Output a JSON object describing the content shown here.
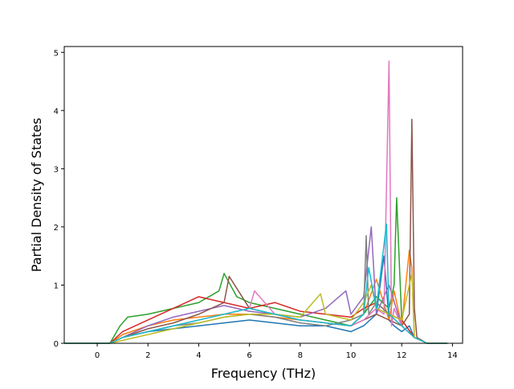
{
  "chart_data": {
    "type": "line",
    "title": "",
    "xlabel": "Frequency (THz)",
    "ylabel": "Partial Density of States",
    "xlim": [
      -1.3,
      14.4
    ],
    "ylim": [
      0,
      5.1
    ],
    "xticks": [
      0,
      2,
      4,
      6,
      8,
      10,
      12,
      14
    ],
    "yticks": [
      0,
      1,
      2,
      3,
      4,
      5
    ],
    "grid": false,
    "legend": "none",
    "colors": [
      "#1f77b4",
      "#ff7f0e",
      "#2ca02c",
      "#d62728",
      "#9467bd",
      "#8c564b",
      "#e377c2",
      "#7f7f7f",
      "#bcbd22",
      "#17becf"
    ],
    "series": [
      {
        "x": [
          -1.3,
          0.5,
          1,
          2,
          3,
          4,
          5,
          6,
          7,
          8,
          9,
          10,
          10.5,
          11,
          11.3,
          11.5,
          11.7,
          12,
          12.3,
          12.5,
          13,
          13.8
        ],
        "y": [
          0,
          0,
          0.1,
          0.2,
          0.25,
          0.3,
          0.35,
          0.4,
          0.35,
          0.3,
          0.3,
          0.2,
          0.3,
          0.5,
          1.5,
          0.4,
          0.3,
          0.2,
          0.3,
          0.1,
          0,
          0
        ]
      },
      {
        "x": [
          -1.3,
          0.5,
          1,
          2,
          3,
          4,
          5,
          6,
          7,
          8,
          9,
          10,
          10.5,
          11,
          11.5,
          11.7,
          12,
          12.3,
          12.4,
          12.5,
          13,
          13.8
        ],
        "y": [
          0,
          0,
          0.15,
          0.3,
          0.4,
          0.45,
          0.5,
          0.5,
          0.45,
          0.4,
          0.35,
          0.3,
          0.5,
          1.1,
          0.4,
          0.9,
          0.3,
          1.6,
          1.3,
          0.1,
          0,
          0
        ]
      },
      {
        "x": [
          -1.3,
          0.5,
          0.9,
          1.2,
          2,
          3,
          4,
          4.8,
          5,
          5.5,
          6,
          7,
          8,
          9,
          10,
          10.5,
          11,
          11.5,
          11.7,
          11.8,
          12,
          12.5,
          13,
          13.8
        ],
        "y": [
          0,
          0,
          0.3,
          0.45,
          0.5,
          0.6,
          0.7,
          0.9,
          1.2,
          0.8,
          0.7,
          0.6,
          0.5,
          0.4,
          0.3,
          0.5,
          0.8,
          0.6,
          1.0,
          2.5,
          0.4,
          0.1,
          0,
          0
        ]
      },
      {
        "x": [
          -1.3,
          0.5,
          1,
          2,
          3,
          4,
          5,
          6,
          7,
          8,
          9,
          10,
          10.5,
          11,
          11.5,
          12,
          12.5,
          13,
          13.8
        ],
        "y": [
          0,
          0,
          0.2,
          0.4,
          0.6,
          0.8,
          0.7,
          0.6,
          0.7,
          0.55,
          0.5,
          0.45,
          0.6,
          0.7,
          0.5,
          0.4,
          0.1,
          0,
          0
        ]
      },
      {
        "x": [
          -1.3,
          0.5,
          1,
          2,
          3,
          4,
          5,
          6,
          7,
          8,
          9,
          9.8,
          10,
          10.5,
          10.8,
          11,
          11.5,
          12,
          12.5,
          13,
          13.8
        ],
        "y": [
          0,
          0,
          0.1,
          0.3,
          0.45,
          0.55,
          0.65,
          0.55,
          0.5,
          0.45,
          0.6,
          0.9,
          0.5,
          0.8,
          2.0,
          0.5,
          1.0,
          0.3,
          0.1,
          0,
          0
        ]
      },
      {
        "x": [
          -1.3,
          0.5,
          1,
          2,
          3,
          4,
          5,
          5.2,
          6,
          7,
          8,
          9,
          10,
          10.5,
          11,
          11.5,
          12,
          12.3,
          12.4,
          12.5,
          12.6,
          13,
          13.8
        ],
        "y": [
          0,
          0,
          0.1,
          0.25,
          0.35,
          0.5,
          0.7,
          1.15,
          0.6,
          0.5,
          0.4,
          0.35,
          0.3,
          0.4,
          0.5,
          0.4,
          0.3,
          0.5,
          3.85,
          0.6,
          0.1,
          0,
          0
        ]
      },
      {
        "x": [
          -1.3,
          0.5,
          1,
          2,
          3,
          4,
          5,
          6,
          6.2,
          7,
          8,
          9,
          10,
          10.5,
          11,
          11.3,
          11.5,
          11.6,
          11.7,
          12,
          12.5,
          13,
          13.8
        ],
        "y": [
          0,
          0,
          0.1,
          0.2,
          0.3,
          0.4,
          0.5,
          0.6,
          0.9,
          0.5,
          0.4,
          0.35,
          0.3,
          0.4,
          0.6,
          0.5,
          4.85,
          0.3,
          0.6,
          0.3,
          0.1,
          0,
          0
        ]
      },
      {
        "x": [
          -1.3,
          0.5,
          1,
          2,
          3,
          4,
          5,
          6,
          7,
          8,
          9,
          10,
          10.5,
          10.6,
          10.7,
          11,
          11.5,
          12,
          12.5,
          13,
          13.8
        ],
        "y": [
          0,
          0,
          0.1,
          0.2,
          0.3,
          0.35,
          0.45,
          0.5,
          0.45,
          0.35,
          0.3,
          0.4,
          0.5,
          1.85,
          0.5,
          0.7,
          0.5,
          0.3,
          0.1,
          0,
          0
        ]
      },
      {
        "x": [
          -1.3,
          0.5,
          1,
          2,
          3,
          4,
          5,
          6,
          7,
          8,
          8.8,
          9,
          10,
          10.5,
          10.8,
          11,
          11.5,
          12,
          12.4,
          12.5,
          13,
          13.8
        ],
        "y": [
          0,
          0,
          0.05,
          0.15,
          0.25,
          0.35,
          0.45,
          0.5,
          0.5,
          0.45,
          0.85,
          0.5,
          0.4,
          0.7,
          1.0,
          0.6,
          0.5,
          0.4,
          1.2,
          0.1,
          0,
          0
        ]
      },
      {
        "x": [
          -1.3,
          0.5,
          1,
          2,
          3,
          4,
          5,
          6,
          7,
          8,
          9,
          10,
          10.5,
          10.7,
          11,
          11.4,
          11.5,
          12,
          12.5,
          13,
          13.8
        ],
        "y": [
          0,
          0,
          0.1,
          0.2,
          0.3,
          0.4,
          0.5,
          0.6,
          0.5,
          0.4,
          0.35,
          0.3,
          0.5,
          1.3,
          0.6,
          2.05,
          0.5,
          0.3,
          0.1,
          0,
          0
        ]
      }
    ]
  }
}
